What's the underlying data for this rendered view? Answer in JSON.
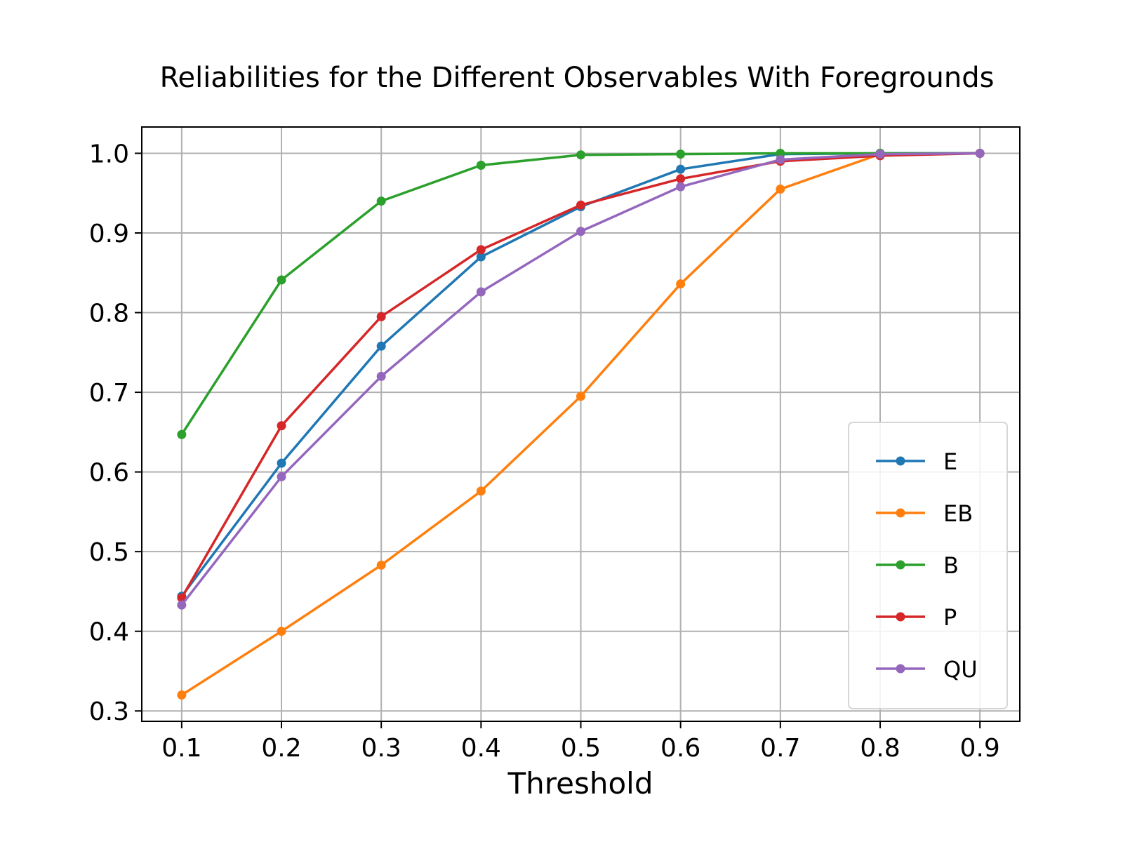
{
  "chart_data": {
    "type": "line",
    "title": "Reliabilities for the Different Observables With Foregrounds",
    "xlabel": "Threshold",
    "ylabel": "",
    "x": [
      0.1,
      0.2,
      0.3,
      0.4,
      0.5,
      0.6,
      0.7,
      0.8,
      0.9
    ],
    "xlim": [
      0.06,
      0.94
    ],
    "ylim": [
      0.287,
      1.033
    ],
    "x_ticks": [
      "0.1",
      "0.2",
      "0.3",
      "0.4",
      "0.5",
      "0.6",
      "0.7",
      "0.8",
      "0.9"
    ],
    "y_ticks": [
      "0.3",
      "0.4",
      "0.5",
      "0.6",
      "0.7",
      "0.8",
      "0.9",
      "1.0"
    ],
    "grid": true,
    "legend_position": "lower-right",
    "series": [
      {
        "name": "E",
        "color": "#1f77b4",
        "values": [
          0.444,
          0.611,
          0.758,
          0.87,
          0.933,
          0.98,
          0.999,
          1.0,
          1.0
        ]
      },
      {
        "name": "EB",
        "color": "#ff7f0e",
        "values": [
          0.32,
          0.4,
          0.483,
          0.576,
          0.695,
          0.836,
          0.955,
          0.999,
          1.0
        ]
      },
      {
        "name": "B",
        "color": "#2ca02c",
        "values": [
          0.647,
          0.841,
          0.94,
          0.985,
          0.998,
          0.999,
          1.0,
          1.0,
          1.0
        ]
      },
      {
        "name": "P",
        "color": "#d62728",
        "values": [
          0.442,
          0.658,
          0.795,
          0.879,
          0.935,
          0.968,
          0.99,
          0.997,
          1.0
        ]
      },
      {
        "name": "QU",
        "color": "#9467bd",
        "values": [
          0.433,
          0.594,
          0.72,
          0.826,
          0.902,
          0.958,
          0.992,
          0.999,
          1.0
        ]
      }
    ]
  }
}
